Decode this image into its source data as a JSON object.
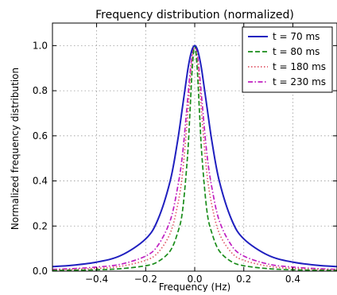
{
  "chart_data": {
    "type": "line",
    "title": "Frequency distribution (normalized)",
    "xlabel": "Frequency (Hz)",
    "ylabel": "Normalized frequency distribution",
    "xlim": [
      -0.58,
      0.58
    ],
    "ylim": [
      0,
      1.1
    ],
    "xticks": [
      -0.4,
      -0.2,
      0.0,
      0.2,
      0.4
    ],
    "xtick_labels": [
      "−0.4",
      "−0.2",
      "0.0",
      "0.2",
      "0.4"
    ],
    "yticks": [
      0.0,
      0.2,
      0.4,
      0.6,
      0.8,
      1.0
    ],
    "ytick_labels": [
      "0.0",
      "0.2",
      "0.4",
      "0.6",
      "0.8",
      "1.0"
    ],
    "grid": true,
    "legend_position": "top-right",
    "series": [
      {
        "name": "t = 70 ms",
        "color": "#1f1fbf",
        "dash": "solid",
        "x": [
          -0.58,
          -0.5,
          -0.4,
          -0.3,
          -0.2,
          -0.15,
          -0.1,
          -0.07,
          -0.05,
          -0.03,
          -0.02,
          -0.01,
          0.0,
          0.01,
          0.02,
          0.03,
          0.05,
          0.07,
          0.1,
          0.15,
          0.2,
          0.3,
          0.4,
          0.5,
          0.58
        ],
        "y": [
          0.02,
          0.026,
          0.04,
          0.07,
          0.143,
          0.229,
          0.4,
          0.576,
          0.727,
          0.881,
          0.943,
          0.985,
          1.0,
          0.985,
          0.943,
          0.881,
          0.727,
          0.576,
          0.4,
          0.229,
          0.143,
          0.07,
          0.04,
          0.026,
          0.02
        ]
      },
      {
        "name": "t = 80 ms",
        "color": "#1a8c1a",
        "dash": "dashed",
        "x": [
          -0.58,
          -0.5,
          -0.4,
          -0.3,
          -0.2,
          -0.15,
          -0.1,
          -0.07,
          -0.05,
          -0.03,
          -0.02,
          -0.01,
          0.0,
          0.01,
          0.02,
          0.03,
          0.05,
          0.07,
          0.1,
          0.15,
          0.2,
          0.3,
          0.4,
          0.5,
          0.58
        ],
        "y": [
          0.003,
          0.004,
          0.006,
          0.011,
          0.024,
          0.042,
          0.09,
          0.169,
          0.265,
          0.5,
          0.692,
          0.9,
          1.0,
          0.9,
          0.692,
          0.5,
          0.265,
          0.169,
          0.09,
          0.042,
          0.024,
          0.011,
          0.006,
          0.004,
          0.003
        ]
      },
      {
        "name": "t = 180 ms",
        "color": "#e05a6a",
        "dash": "dotted",
        "x": [
          -0.58,
          -0.5,
          -0.4,
          -0.3,
          -0.2,
          -0.15,
          -0.1,
          -0.07,
          -0.05,
          -0.03,
          -0.02,
          -0.01,
          0.0,
          0.01,
          0.02,
          0.03,
          0.05,
          0.07,
          0.1,
          0.15,
          0.2,
          0.3,
          0.4,
          0.5,
          0.58
        ],
        "y": [
          0.006,
          0.008,
          0.012,
          0.022,
          0.048,
          0.082,
          0.168,
          0.292,
          0.431,
          0.676,
          0.826,
          0.95,
          1.0,
          0.95,
          0.826,
          0.676,
          0.431,
          0.292,
          0.168,
          0.082,
          0.048,
          0.022,
          0.012,
          0.008,
          0.006
        ]
      },
      {
        "name": "t = 230 ms",
        "color": "#c020c0",
        "dash": "dashdot",
        "x": [
          -0.58,
          -0.5,
          -0.4,
          -0.3,
          -0.2,
          -0.15,
          -0.1,
          -0.07,
          -0.05,
          -0.03,
          -0.02,
          -0.01,
          0.0,
          0.01,
          0.02,
          0.03,
          0.05,
          0.07,
          0.1,
          0.15,
          0.2,
          0.3,
          0.4,
          0.5,
          0.58
        ],
        "y": [
          0.008,
          0.011,
          0.018,
          0.031,
          0.067,
          0.114,
          0.224,
          0.37,
          0.516,
          0.748,
          0.869,
          0.964,
          1.0,
          0.964,
          0.869,
          0.748,
          0.516,
          0.37,
          0.224,
          0.114,
          0.067,
          0.031,
          0.018,
          0.011,
          0.008
        ]
      }
    ]
  }
}
